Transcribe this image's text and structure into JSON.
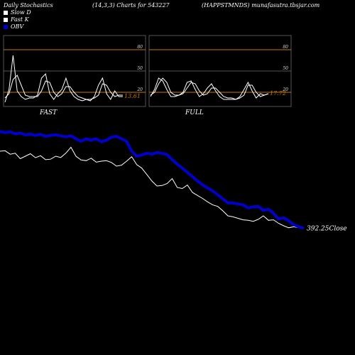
{
  "header": {
    "title": "Daily Stochastics",
    "params": "(14,3,3) Charts for 543227",
    "symbol": "(HAPPSTMNDS) munafasutra.tbsjar.com"
  },
  "legend": [
    {
      "label": "Slow  D",
      "color": "#ffffff"
    },
    {
      "label": "Fast K",
      "color": "#ffffff"
    },
    {
      "label": "OBV",
      "color": "#0000cc"
    }
  ],
  "colors": {
    "background": "#000000",
    "price": "#ffffff",
    "obv": "#0000cc",
    "panel_grid": "#555555",
    "level_line": "#c87800"
  },
  "chart_data": [
    {
      "type": "line",
      "name": "FAST",
      "title": "FAST",
      "ylim": [
        0,
        100
      ],
      "yticks": [
        20,
        50,
        80
      ],
      "levels": [
        20,
        80
      ],
      "last_value_label": "13.61",
      "series": [
        {
          "name": "Slow  D",
          "values": [
            12,
            18,
            38,
            44,
            30,
            16,
            14,
            14,
            14,
            22,
            36,
            34,
            20,
            14,
            18,
            28,
            28,
            20,
            14,
            12,
            10,
            10,
            12,
            16,
            32,
            30,
            20,
            14,
            16,
            16
          ]
        },
        {
          "name": "Fast K",
          "values": [
            6,
            24,
            72,
            22,
            14,
            10,
            12,
            12,
            16,
            40,
            46,
            18,
            10,
            18,
            24,
            40,
            22,
            14,
            10,
            8,
            10,
            8,
            14,
            30,
            40,
            18,
            10,
            22,
            14,
            14
          ]
        }
      ]
    },
    {
      "type": "line",
      "name": "FULL",
      "title": "FULL",
      "ylim": [
        0,
        100
      ],
      "yticks": [
        20,
        50,
        80
      ],
      "levels": [
        20,
        80
      ],
      "last_value_label": "17.72",
      "series": [
        {
          "name": "Slow  D",
          "values": [
            16,
            20,
            32,
            40,
            34,
            20,
            16,
            16,
            18,
            26,
            34,
            32,
            22,
            16,
            18,
            26,
            26,
            20,
            14,
            12,
            12,
            10,
            12,
            16,
            30,
            30,
            20,
            14,
            16,
            18
          ]
        },
        {
          "name": "Fast K",
          "values": [
            14,
            24,
            40,
            36,
            24,
            14,
            14,
            16,
            20,
            34,
            36,
            24,
            14,
            18,
            26,
            32,
            22,
            14,
            10,
            10,
            10,
            10,
            14,
            24,
            34,
            22,
            12,
            18,
            16,
            18
          ]
        }
      ]
    },
    {
      "type": "line",
      "name": "price-obv",
      "price_label": "392.25",
      "price_suffix": "Close",
      "series": [
        {
          "name": "Close",
          "values": [
            820,
            822,
            808,
            812,
            790,
            800,
            810,
            794,
            802,
            786,
            788,
            800,
            795,
            812,
            836,
            800,
            785,
            782,
            792,
            776,
            780,
            782,
            775,
            760,
            764,
            780,
            798,
            766,
            752,
            726,
            700,
            680,
            682,
            690,
            710,
            674,
            670,
            684,
            654,
            642,
            630,
            616,
            604,
            598,
            580,
            560,
            556,
            550,
            544,
            542,
            538,
            546,
            560,
            542,
            544,
            530,
            520,
            512,
            516,
            512,
            510
          ]
        },
        {
          "name": "OBV",
          "values": [
            900,
            895,
            898,
            890,
            893,
            886,
            889,
            884,
            888,
            880,
            884,
            886,
            882,
            878,
            882,
            870,
            860,
            870,
            865,
            870,
            858,
            864,
            876,
            880,
            870,
            860,
            820,
            800,
            805,
            812,
            808,
            815,
            812,
            806,
            786,
            768,
            752,
            735,
            718,
            700,
            685,
            672,
            660,
            645,
            628,
            612,
            612,
            608,
            604,
            592,
            596,
            598,
            582,
            587,
            570,
            548,
            552,
            540,
            524,
            516,
            510
          ]
        }
      ]
    }
  ]
}
